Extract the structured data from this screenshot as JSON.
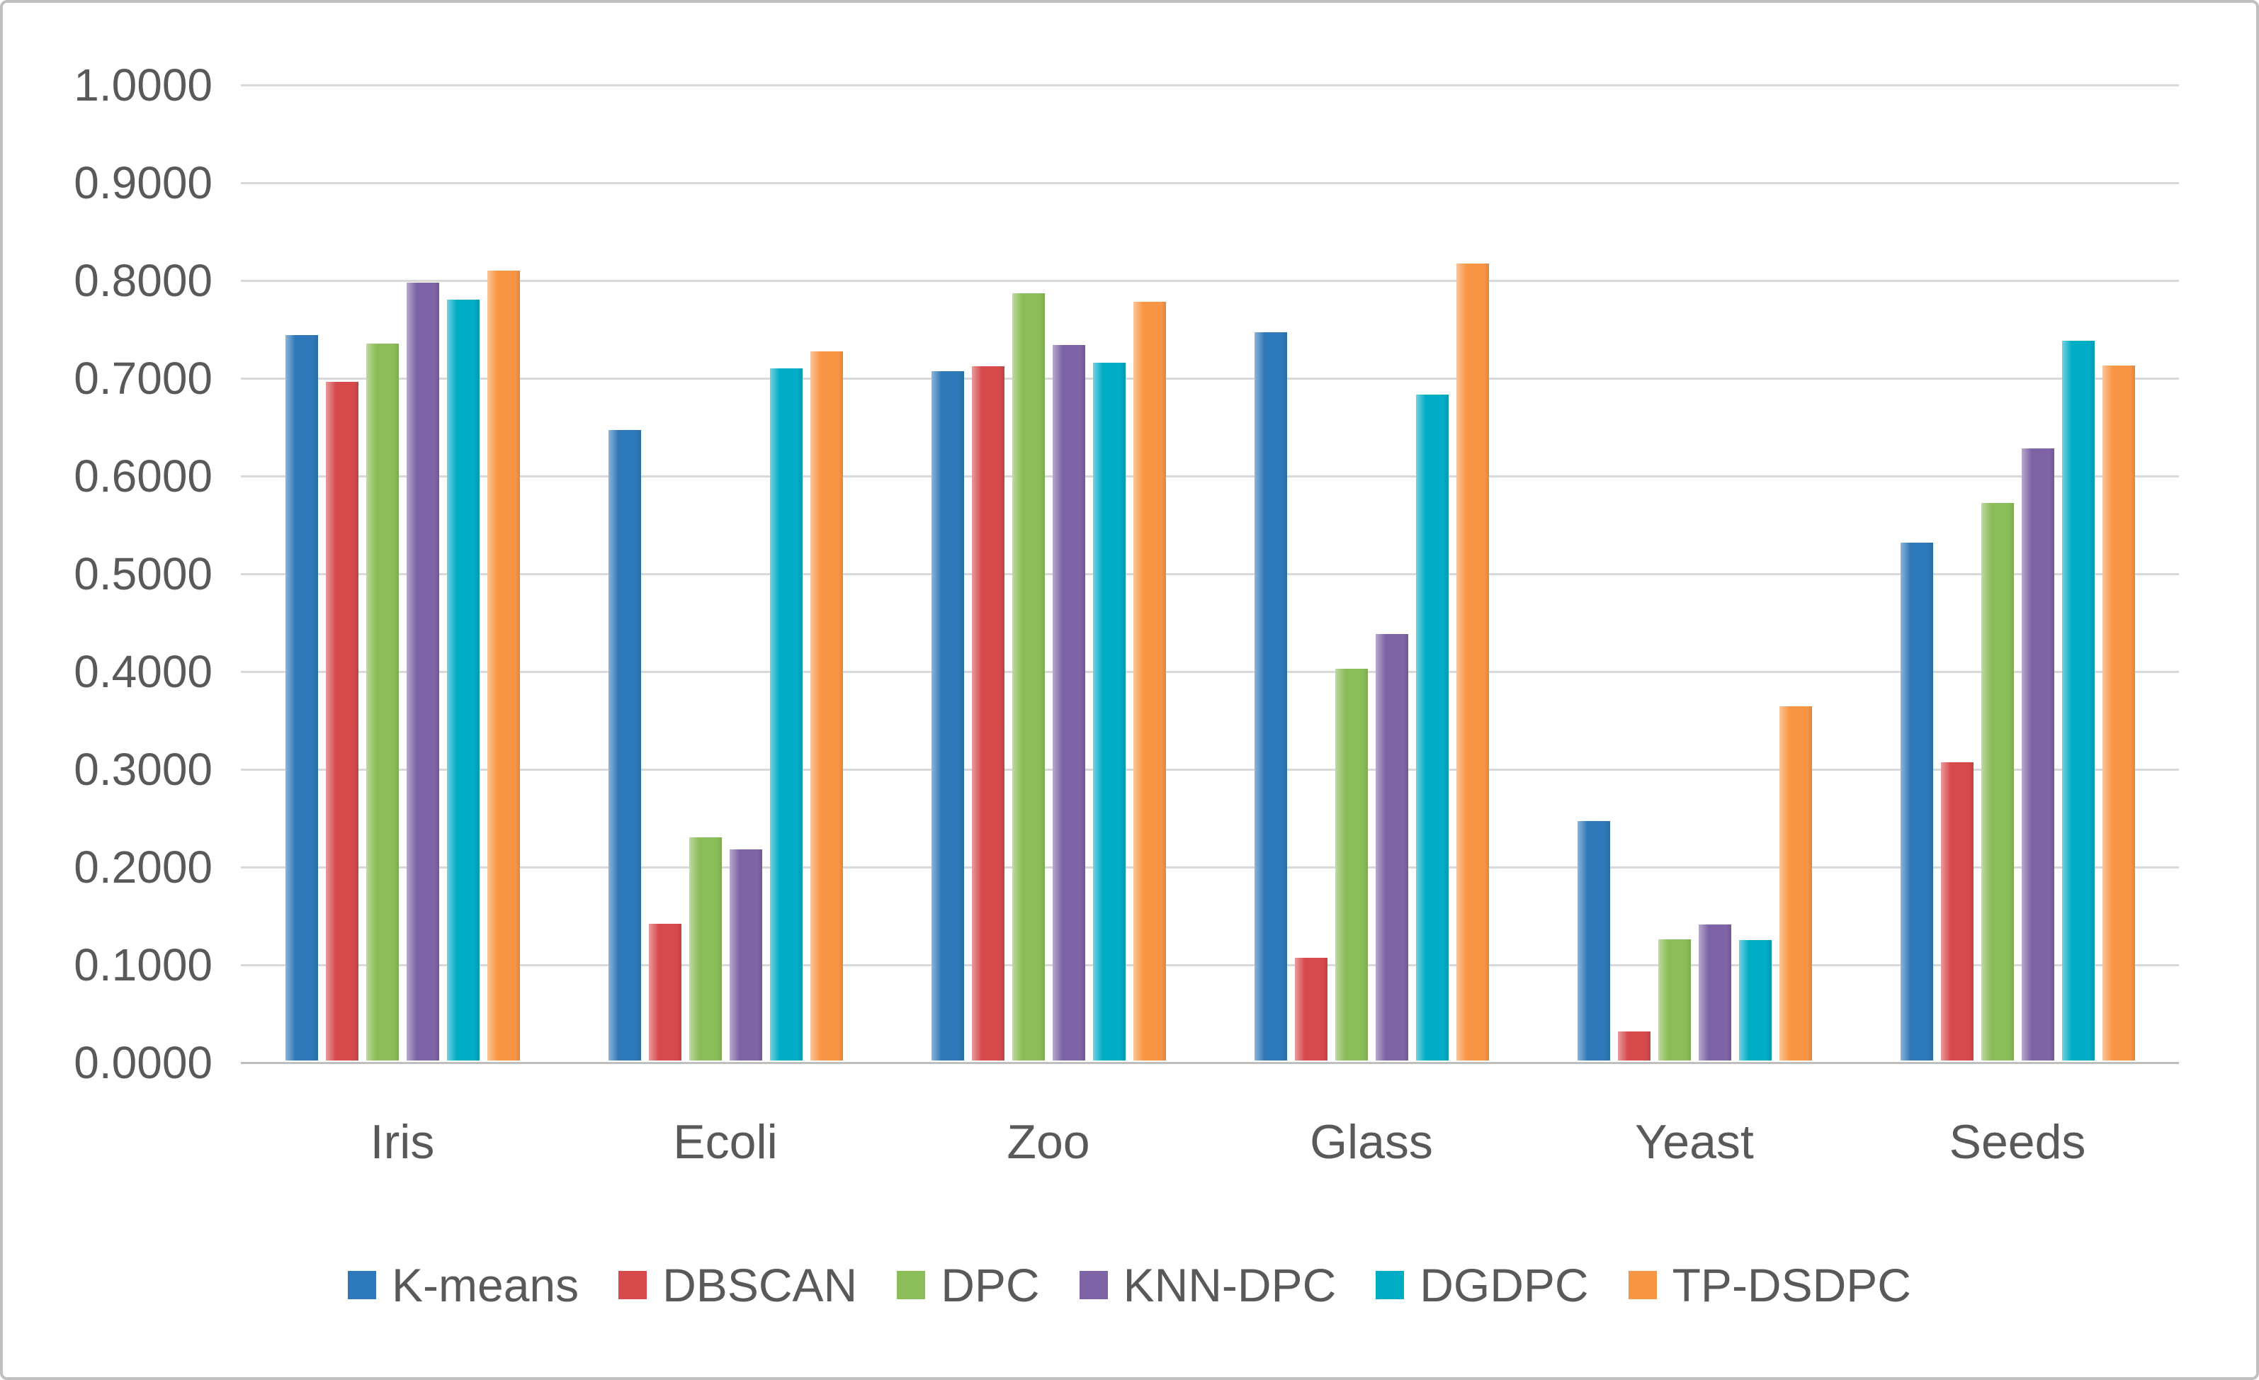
{
  "chart_data": {
    "type": "bar",
    "title": "",
    "xlabel": "",
    "ylabel": "",
    "categories": [
      "Iris",
      "Ecoli",
      "Zoo",
      "Glass",
      "Yeast",
      "Seeds"
    ],
    "series": [
      {
        "name": "K-means",
        "color": "#2E79B9",
        "values": [
          0.742,
          0.645,
          0.705,
          0.745,
          0.245,
          0.53
        ]
      },
      {
        "name": "DBSCAN",
        "color": "#D64A4C",
        "values": [
          0.694,
          0.14,
          0.71,
          0.105,
          0.03,
          0.305
        ]
      },
      {
        "name": "DPC",
        "color": "#8BBD58",
        "values": [
          0.733,
          0.228,
          0.785,
          0.401,
          0.124,
          0.57
        ]
      },
      {
        "name": "KNN-DPC",
        "color": "#7E63A6",
        "values": [
          0.796,
          0.216,
          0.732,
          0.436,
          0.139,
          0.626
        ]
      },
      {
        "name": "DGDPC",
        "color": "#00ACC6",
        "values": [
          0.778,
          0.708,
          0.714,
          0.681,
          0.123,
          0.736
        ]
      },
      {
        "name": "TP-DSDPC",
        "color": "#F99646",
        "values": [
          0.808,
          0.725,
          0.776,
          0.815,
          0.362,
          0.711
        ]
      }
    ],
    "y_ticks": [
      "1.0000",
      "0.9000",
      "0.8000",
      "0.7000",
      "0.6000",
      "0.5000",
      "0.4000",
      "0.3000",
      "0.2000",
      "0.1000",
      "0.0000"
    ],
    "ylim": [
      0.0,
      1.0
    ],
    "grid": true,
    "legend_position": "bottom"
  },
  "colors": {
    "gridline": "#D9D9D9",
    "axis_line": "#BFBFBF",
    "text": "#595959",
    "canvas_border": "#BFBFBF",
    "background": "#FFFFFF"
  }
}
